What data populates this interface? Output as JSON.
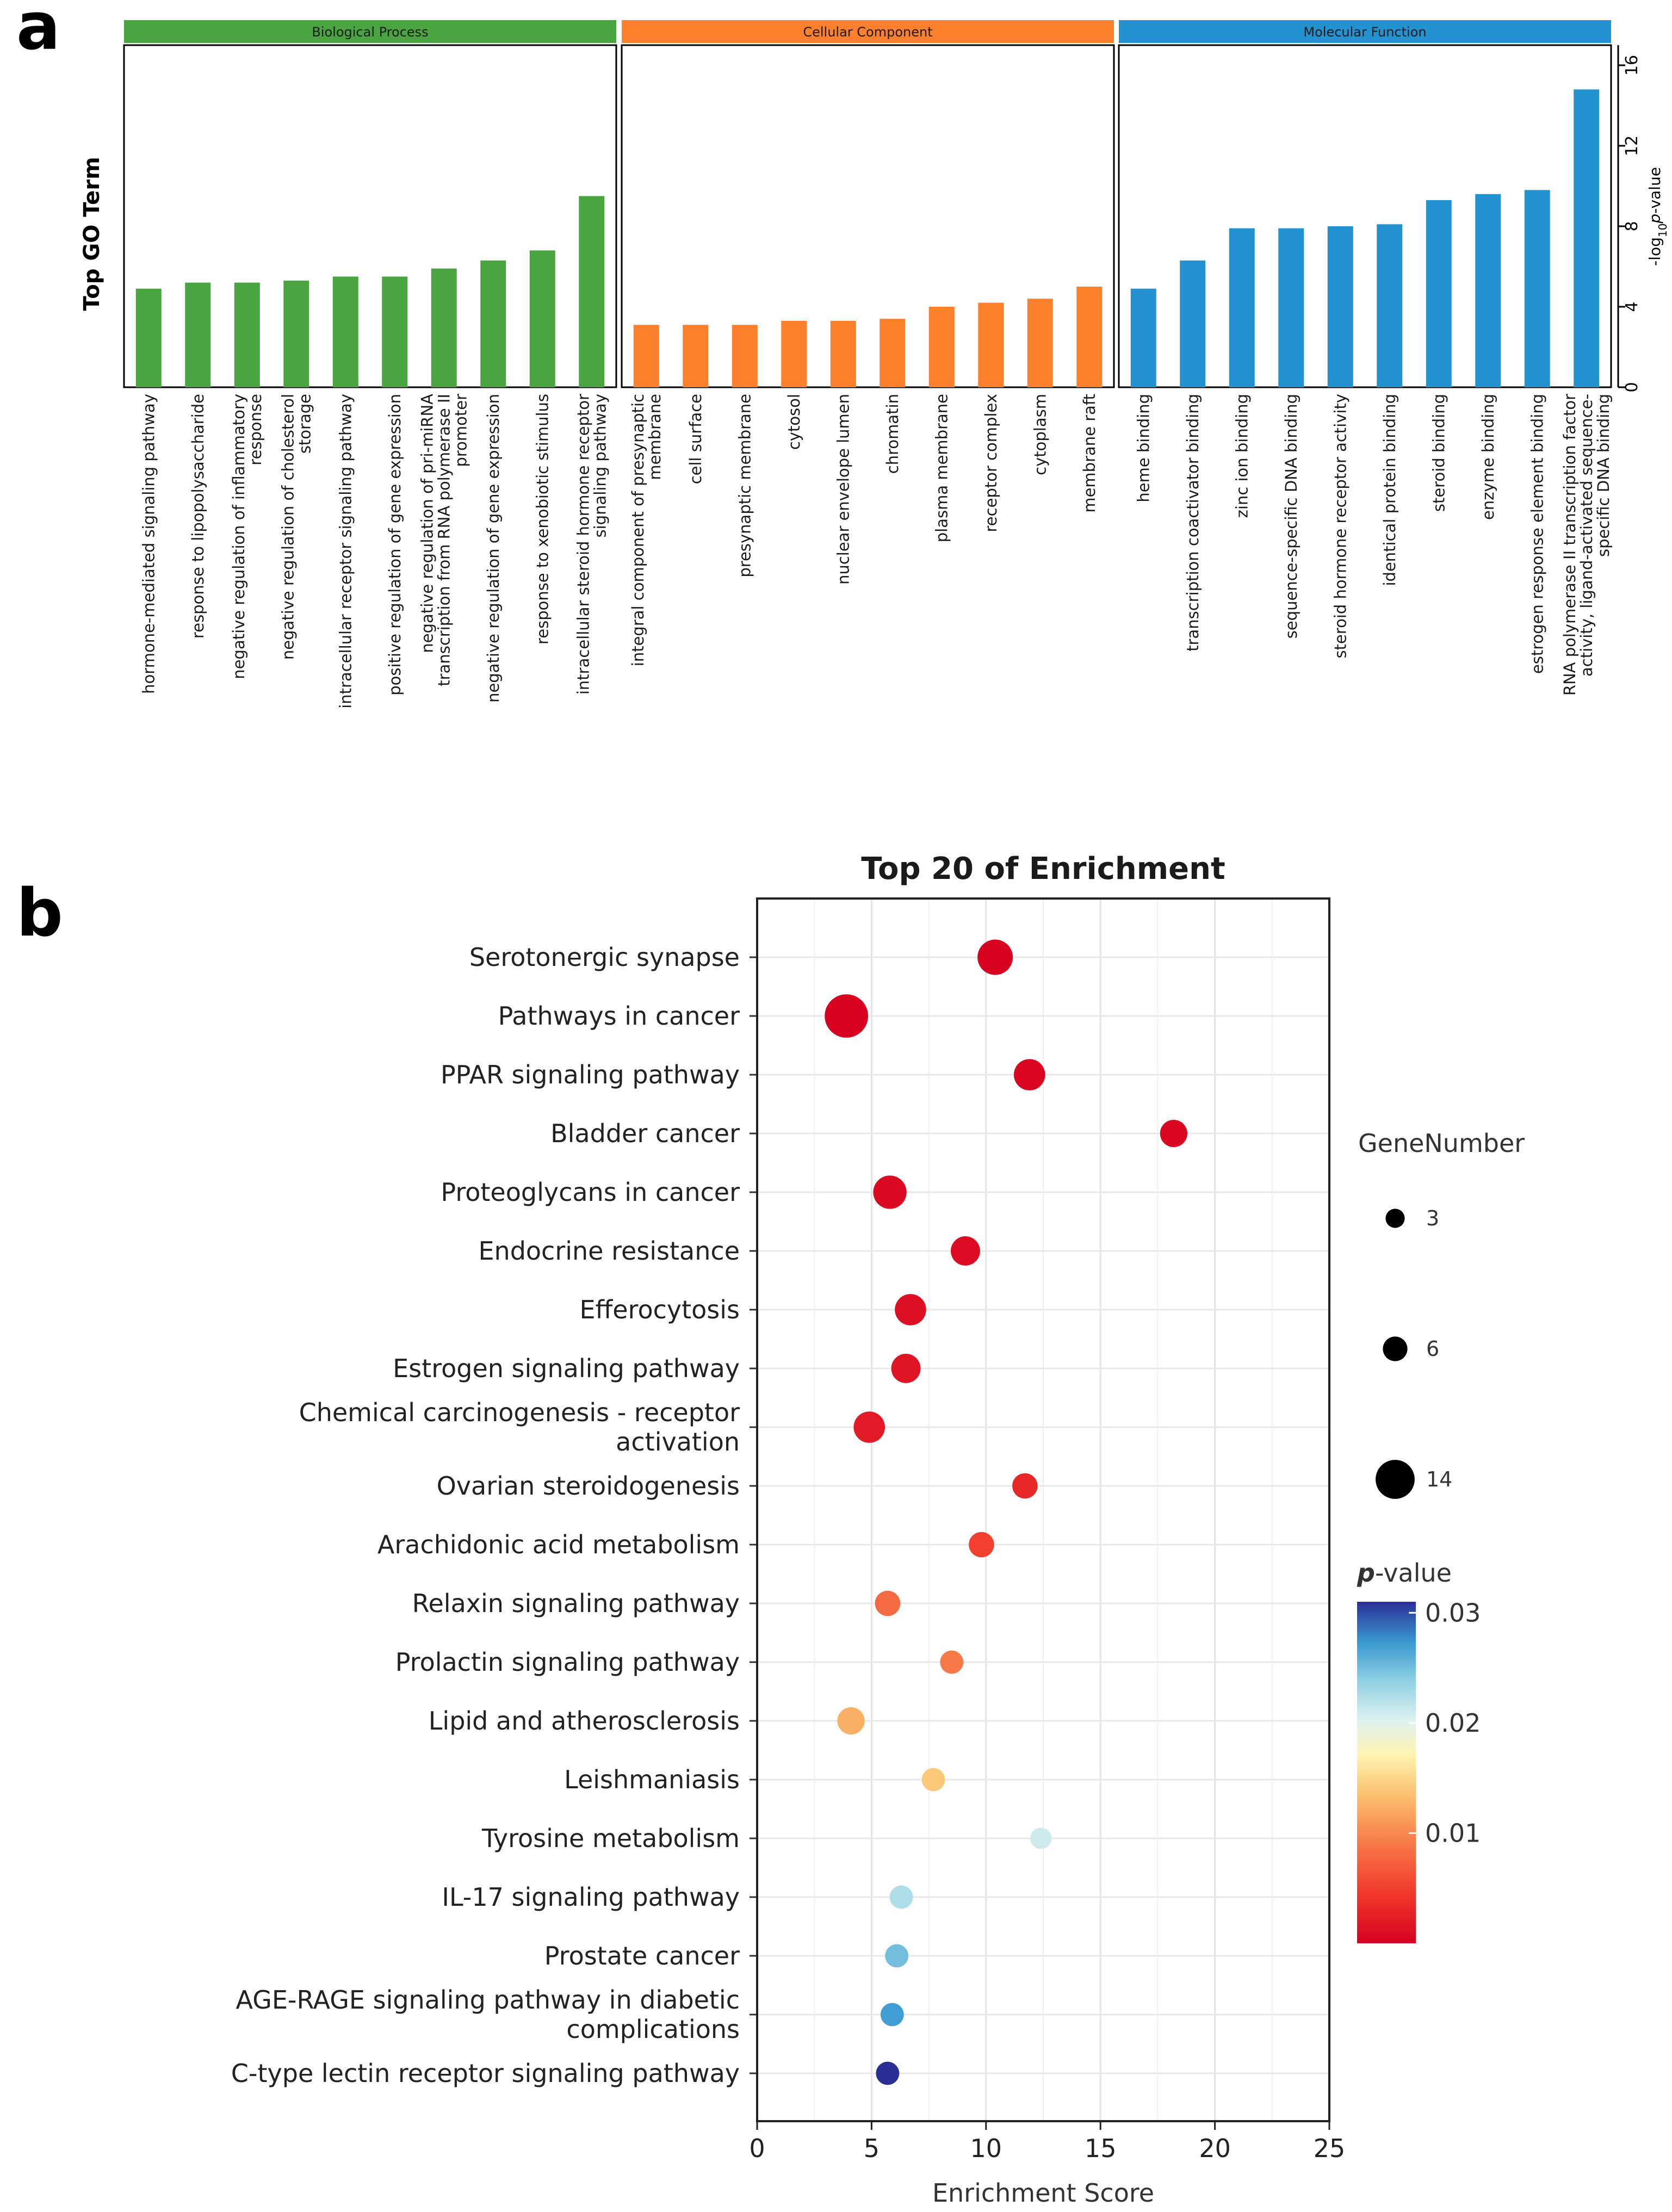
{
  "panel_labels": {
    "a": "a",
    "b": "b"
  },
  "chart_data": [
    {
      "type": "bar",
      "panel": "a",
      "ylabel": "Top GO Term",
      "y2label_prefix": "-log",
      "y2label_sub": "10",
      "y2label_italic": "p",
      "y2label_suffix": "-value",
      "ylim": [
        0,
        17
      ],
      "yticks": [
        {
          "value": 0,
          "label": "0"
        },
        {
          "value": 4,
          "label": "4"
        },
        {
          "value": 8,
          "label": "8"
        },
        {
          "value": 12,
          "label": "12"
        },
        {
          "value": 16,
          "label": "16"
        }
      ],
      "groups": [
        {
          "name": "Biological Process",
          "color": "#4aa541",
          "terms": [
            {
              "label": [
                "hormone-mediated signaling pathway"
              ],
              "value": 4.9
            },
            {
              "label": [
                "response to lipopolysaccharide"
              ],
              "value": 5.2
            },
            {
              "label": [
                "negative regulation of inflammatory",
                "response"
              ],
              "value": 5.2
            },
            {
              "label": [
                "negative regulation of cholesterol",
                "storage"
              ],
              "value": 5.3
            },
            {
              "label": [
                "intracellular receptor signaling pathway"
              ],
              "value": 5.5
            },
            {
              "label": [
                "positive regulation of gene expression"
              ],
              "value": 5.5
            },
            {
              "label": [
                "negative regulation of pri-miRNA",
                "transcription from RNA polymerase II",
                "promoter"
              ],
              "value": 5.9
            },
            {
              "label": [
                "negative regulation of gene expression"
              ],
              "value": 6.3
            },
            {
              "label": [
                "response to xenobiotic stimulus"
              ],
              "value": 6.8
            },
            {
              "label": [
                "intracellular steroid hormone receptor",
                "signaling pathway"
              ],
              "value": 9.5
            }
          ]
        },
        {
          "name": "Cellular Component",
          "color": "#fe7f2c",
          "terms": [
            {
              "label": [
                "integral component of presynaptic",
                "membrane"
              ],
              "value": 3.1
            },
            {
              "label": [
                "cell surface"
              ],
              "value": 3.1
            },
            {
              "label": [
                "presynaptic membrane"
              ],
              "value": 3.1
            },
            {
              "label": [
                "cytosol"
              ],
              "value": 3.3
            },
            {
              "label": [
                "nuclear envelope lumen"
              ],
              "value": 3.3
            },
            {
              "label": [
                "chromatin"
              ],
              "value": 3.4
            },
            {
              "label": [
                "plasma membrane"
              ],
              "value": 4.0
            },
            {
              "label": [
                "receptor complex"
              ],
              "value": 4.2
            },
            {
              "label": [
                "cytoplasm"
              ],
              "value": 4.4
            },
            {
              "label": [
                "membrane raft"
              ],
              "value": 5.0
            }
          ]
        },
        {
          "name": "Molecular Function",
          "color": "#2293d0",
          "terms": [
            {
              "label": [
                "heme binding"
              ],
              "value": 4.9
            },
            {
              "label": [
                "transcription coactivator binding"
              ],
              "value": 6.3
            },
            {
              "label": [
                "zinc ion binding"
              ],
              "value": 7.9
            },
            {
              "label": [
                "sequence-specific DNA binding"
              ],
              "value": 7.9
            },
            {
              "label": [
                "steroid hormone receptor activity"
              ],
              "value": 8.0
            },
            {
              "label": [
                "identical protein binding"
              ],
              "value": 8.1
            },
            {
              "label": [
                "steroid binding"
              ],
              "value": 9.3
            },
            {
              "label": [
                "enzyme binding"
              ],
              "value": 9.6
            },
            {
              "label": [
                "estrogen response element binding"
              ],
              "value": 9.8
            },
            {
              "label": [
                "RNA polymerase II transcription factor",
                "activity, ligand-activated sequence-",
                "specific DNA binding"
              ],
              "value": 14.8
            }
          ]
        }
      ]
    },
    {
      "type": "scatter",
      "panel": "b",
      "title": "Top 20 of  Enrichment",
      "xlabel": "Enrichment Score",
      "xlim": [
        0,
        25
      ],
      "xticks": [
        {
          "value": 0,
          "label": "0"
        },
        {
          "value": 5,
          "label": "5"
        },
        {
          "value": 10,
          "label": "10"
        },
        {
          "value": 15,
          "label": "15"
        },
        {
          "value": 20,
          "label": "20"
        },
        {
          "value": 25,
          "label": "25"
        }
      ],
      "grid": true,
      "size_legend": {
        "title": "GeneNumber",
        "entries": [
          {
            "value": 3,
            "label": "3"
          },
          {
            "value": 6,
            "label": "6"
          },
          {
            "value": 14,
            "label": "14"
          }
        ]
      },
      "color_legend": {
        "title_italic": "p",
        "title_rest": "-value",
        "range": [
          0.0,
          0.031
        ],
        "ticks": [
          {
            "value": 0.01,
            "label": "0.01"
          },
          {
            "value": 0.02,
            "label": "0.02"
          },
          {
            "value": 0.03,
            "label": "0.03"
          }
        ]
      },
      "points": [
        {
          "label": [
            "Serotonergic synapse"
          ],
          "x": 10.4,
          "genes": 10,
          "p": 0.0002
        },
        {
          "label": [
            "Pathways in cancer"
          ],
          "x": 3.9,
          "genes": 14,
          "p": 0.0002
        },
        {
          "label": [
            "PPAR signaling pathway"
          ],
          "x": 11.9,
          "genes": 8,
          "p": 0.0004
        },
        {
          "label": [
            "Bladder cancer"
          ],
          "x": 18.2,
          "genes": 6,
          "p": 0.0005
        },
        {
          "label": [
            "Proteoglycans in cancer"
          ],
          "x": 5.8,
          "genes": 9,
          "p": 0.0008
        },
        {
          "label": [
            "Endocrine resistance"
          ],
          "x": 9.1,
          "genes": 7,
          "p": 0.001
        },
        {
          "label": [
            "Efferocytosis"
          ],
          "x": 6.7,
          "genes": 8,
          "p": 0.0012
        },
        {
          "label": [
            "Estrogen signaling pathway"
          ],
          "x": 6.5,
          "genes": 7,
          "p": 0.0016
        },
        {
          "label": [
            "Chemical carcinogenesis - receptor",
            "activation"
          ],
          "x": 4.9,
          "genes": 8,
          "p": 0.002
        },
        {
          "label": [
            "Ovarian steroidogenesis"
          ],
          "x": 11.7,
          "genes": 5,
          "p": 0.003
        },
        {
          "label": [
            "Arachidonic acid metabolism"
          ],
          "x": 9.8,
          "genes": 5,
          "p": 0.005
        },
        {
          "label": [
            "Relaxin signaling pathway"
          ],
          "x": 5.7,
          "genes": 5,
          "p": 0.008
        },
        {
          "label": [
            "Prolactin signaling pathway"
          ],
          "x": 8.5,
          "genes": 4,
          "p": 0.009
        },
        {
          "label": [
            "Lipid and atherosclerosis"
          ],
          "x": 4.1,
          "genes": 6,
          "p": 0.0125
        },
        {
          "label": [
            "Leishmaniasis"
          ],
          "x": 7.7,
          "genes": 4,
          "p": 0.014
        },
        {
          "label": [
            "Tyrosine metabolism"
          ],
          "x": 12.4,
          "genes": 3,
          "p": 0.021
        },
        {
          "label": [
            "IL-17 signaling pathway"
          ],
          "x": 6.3,
          "genes": 4,
          "p": 0.0225
        },
        {
          "label": [
            "Prostate cancer"
          ],
          "x": 6.1,
          "genes": 4,
          "p": 0.025
        },
        {
          "label": [
            "AGE-RAGE signaling pathway in diabetic",
            "complications"
          ],
          "x": 5.9,
          "genes": 4,
          "p": 0.027
        },
        {
          "label": [
            "C-type lectin receptor signaling pathway"
          ],
          "x": 5.7,
          "genes": 4,
          "p": 0.031
        }
      ]
    }
  ]
}
